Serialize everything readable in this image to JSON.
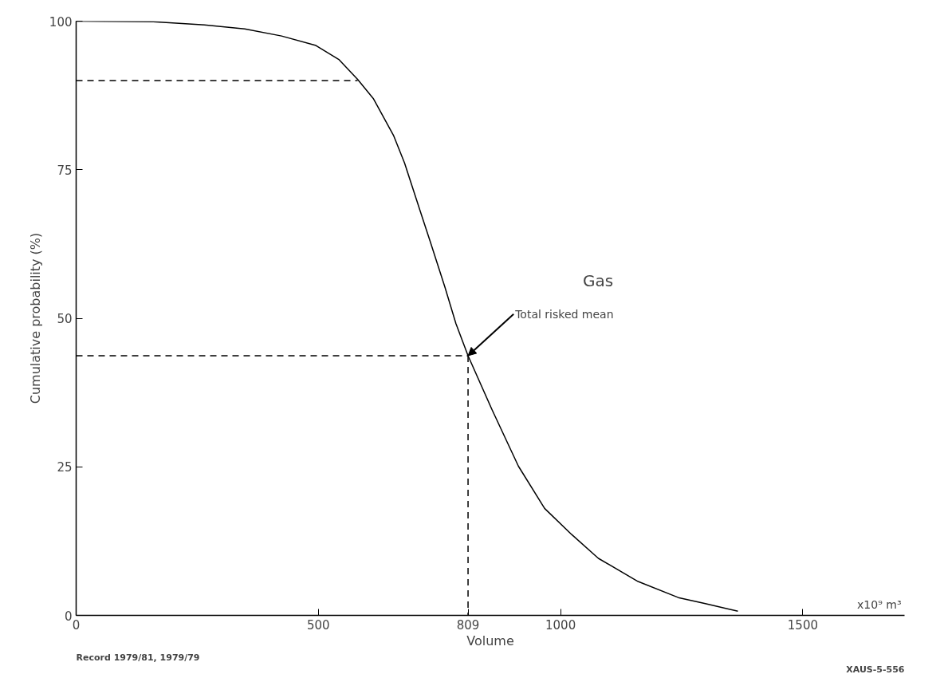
{
  "chart_data": {
    "type": "line",
    "xlabel": "Volume",
    "ylabel": "Cumulative probability (%)",
    "xlim": [
      0,
      1710
    ],
    "ylim": [
      0,
      100
    ],
    "xticks": [
      0,
      500,
      809,
      1000,
      1500
    ],
    "yticks": [
      0,
      25,
      50,
      75,
      100
    ],
    "grid": false,
    "legend": false,
    "marker": "none",
    "series": [
      {
        "name": "Gas",
        "color": "#000000",
        "line_style": "solid",
        "x": [
          0,
          159,
          259,
          348,
          424,
          495,
          543,
          581,
          614,
          655,
          678,
          708,
          731,
          761,
          784,
          809,
          858,
          913,
          967,
          1023,
          1078,
          1160,
          1243,
          1297,
          1366
        ],
        "values": [
          100,
          99.9,
          99.4,
          98.7,
          97.5,
          95.9,
          93.5,
          90.2,
          86.9,
          80.8,
          76.1,
          68.6,
          62.9,
          55.3,
          49.1,
          43.7,
          34.7,
          25.1,
          18.0,
          13.6,
          9.6,
          5.7,
          3.0,
          2.0,
          0.7
        ]
      },
      {
        "color": "#000000",
        "line_style": "dashed",
        "x": [
          0,
          581
        ],
        "values": [
          90,
          90
        ]
      },
      {
        "color": "#000000",
        "line_style": "dashed",
        "x": [
          0,
          809
        ],
        "values": [
          43.7,
          43.7
        ]
      },
      {
        "color": "#000000",
        "line_style": "dashed",
        "x": [
          809,
          809
        ],
        "values": [
          43.7,
          0
        ]
      }
    ],
    "annotations": [
      {
        "text": "Total risked mean",
        "x": 809,
        "y": 43.7
      },
      "x10⁹ m³",
      "Record 1979/81, 1979/79",
      "XAUS-5-556"
    ]
  }
}
